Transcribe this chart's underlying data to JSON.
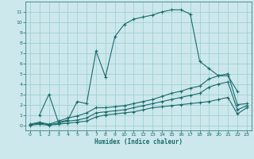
{
  "xlabel": "Humidex (Indice chaleur)",
  "bg_color": "#cce8ec",
  "grid_color": "#99cccc",
  "line_color": "#1a6b6b",
  "xlim": [
    -0.5,
    23.5
  ],
  "ylim": [
    -0.5,
    12.0
  ],
  "xticks": [
    0,
    1,
    2,
    3,
    4,
    5,
    6,
    7,
    8,
    9,
    10,
    11,
    12,
    13,
    14,
    15,
    16,
    17,
    18,
    19,
    20,
    21,
    22,
    23
  ],
  "yticks": [
    0,
    1,
    2,
    3,
    4,
    5,
    6,
    7,
    8,
    9,
    10,
    11
  ],
  "lines": [
    {
      "x": [
        1,
        2,
        3,
        4,
        5,
        6,
        7,
        8,
        9,
        10,
        11,
        12,
        13,
        14,
        15,
        16,
        17,
        18,
        19,
        20,
        21,
        22
      ],
      "y": [
        1.0,
        3.0,
        0.3,
        0.5,
        2.3,
        2.1,
        7.2,
        4.7,
        8.6,
        9.8,
        10.3,
        10.5,
        10.7,
        11.0,
        11.2,
        11.2,
        10.8,
        6.2,
        5.5,
        4.8,
        4.8,
        3.3
      ]
    },
    {
      "x": [
        0,
        1,
        2,
        3,
        4,
        5,
        6,
        7,
        8,
        9,
        10,
        11,
        12,
        13,
        14,
        15,
        16,
        17,
        18,
        19,
        20,
        21,
        22,
        23
      ],
      "y": [
        0.1,
        0.3,
        0.1,
        0.4,
        0.7,
        0.9,
        1.2,
        1.7,
        1.7,
        1.8,
        1.9,
        2.1,
        2.3,
        2.5,
        2.8,
        3.1,
        3.3,
        3.6,
        3.8,
        4.5,
        4.8,
        5.0,
        2.0,
        2.1
      ]
    },
    {
      "x": [
        0,
        1,
        2,
        3,
        4,
        5,
        6,
        7,
        8,
        9,
        10,
        11,
        12,
        13,
        14,
        15,
        16,
        17,
        18,
        19,
        20,
        21,
        22,
        23
      ],
      "y": [
        0.05,
        0.2,
        0.05,
        0.2,
        0.4,
        0.5,
        0.7,
        1.2,
        1.3,
        1.4,
        1.5,
        1.7,
        1.9,
        2.1,
        2.3,
        2.5,
        2.7,
        2.9,
        3.1,
        3.7,
        4.0,
        4.2,
        1.5,
        1.9
      ]
    },
    {
      "x": [
        0,
        1,
        2,
        3,
        4,
        5,
        6,
        7,
        8,
        9,
        10,
        11,
        12,
        13,
        14,
        15,
        16,
        17,
        18,
        19,
        20,
        21,
        22,
        23
      ],
      "y": [
        0.0,
        0.1,
        0.0,
        0.1,
        0.2,
        0.3,
        0.4,
        0.8,
        1.0,
        1.1,
        1.2,
        1.3,
        1.5,
        1.7,
        1.8,
        1.9,
        2.0,
        2.1,
        2.2,
        2.3,
        2.5,
        2.7,
        1.1,
        1.7
      ]
    }
  ]
}
